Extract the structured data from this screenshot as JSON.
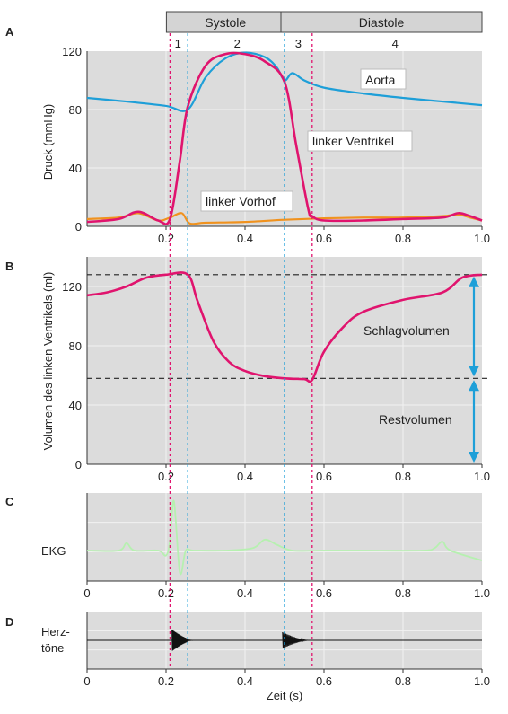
{
  "colors": {
    "panel_bg": "#dcdcdc",
    "grid": "#f2f2f2",
    "aorta": "#1e9fd8",
    "ventricle": "#e0146e",
    "atrium": "#f0921e",
    "ekg": "#b6f0b0",
    "heart_sound": "#111111",
    "divider_pink": "#e0146e",
    "divider_blue": "#1e9fd8",
    "annotation_blue": "#1e9fd8"
  },
  "phases": {
    "groups": [
      {
        "label": "Systole",
        "start": 0.21,
        "end": 0.5
      },
      {
        "label": "Diastole",
        "start": 0.5,
        "end": 1.0
      }
    ],
    "numbers": [
      {
        "label": "1",
        "center": 0.23
      },
      {
        "label": "2",
        "center": 0.38
      },
      {
        "label": "3",
        "center": 0.535
      },
      {
        "label": "4",
        "center": 0.78
      }
    ],
    "dividers": [
      {
        "t": 0.21,
        "color": "pink"
      },
      {
        "t": 0.255,
        "color": "blue"
      },
      {
        "t": 0.5,
        "color": "blue"
      },
      {
        "t": 0.57,
        "color": "pink"
      }
    ]
  },
  "chart_data": [
    {
      "panel": "A",
      "type": "line",
      "xlabel": "",
      "ylabel": "Druck (mmHg)",
      "xlim": [
        0,
        1.0
      ],
      "ylim": [
        0,
        120
      ],
      "xticks": [
        "0.2",
        "0.4",
        "0.6",
        "0.8",
        "1.0"
      ],
      "xtick_values": [
        0.2,
        0.4,
        0.6,
        0.8,
        1.0
      ],
      "yticks": [
        "0",
        "40",
        "80",
        "120"
      ],
      "ytick_values": [
        0,
        40,
        80,
        120
      ],
      "grid": true,
      "series": [
        {
          "name": "Aorta",
          "key": "aorta",
          "x": [
            0,
            0.1,
            0.2,
            0.255,
            0.3,
            0.35,
            0.4,
            0.45,
            0.48,
            0.5,
            0.52,
            0.55,
            0.6,
            0.7,
            0.8,
            0.9,
            1.0
          ],
          "y": [
            88,
            85.5,
            82.5,
            80,
            102,
            115,
            119,
            116,
            109,
            100,
            105,
            100,
            95,
            91,
            88,
            85.5,
            83
          ]
        },
        {
          "name": "linker Ventrikel",
          "key": "ventricle",
          "x": [
            0,
            0.08,
            0.13,
            0.18,
            0.21,
            0.235,
            0.255,
            0.3,
            0.35,
            0.4,
            0.45,
            0.5,
            0.53,
            0.56,
            0.57,
            0.6,
            0.7,
            0.8,
            0.9,
            0.94,
            0.97,
            1.0
          ],
          "y": [
            3,
            5,
            10,
            4,
            5,
            45,
            82,
            110,
            118,
            118,
            113,
            99,
            55,
            12,
            7,
            4,
            4,
            5,
            6,
            9,
            7,
            4
          ]
        },
        {
          "name": "linker Vorhof",
          "key": "atrium",
          "x": [
            0,
            0.08,
            0.13,
            0.18,
            0.21,
            0.24,
            0.26,
            0.3,
            0.4,
            0.5,
            0.6,
            0.7,
            0.8,
            0.9,
            0.94,
            0.97,
            1.0
          ],
          "y": [
            5,
            6,
            9,
            4,
            6,
            9,
            2,
            2.5,
            3,
            4.5,
            5.5,
            6,
            6,
            7,
            8,
            6,
            4
          ]
        }
      ]
    },
    {
      "panel": "B",
      "type": "line",
      "xlabel": "",
      "ylabel": "Volumen des linken Ventrikels (ml)",
      "xlim": [
        0,
        1.0
      ],
      "ylim": [
        0,
        140
      ],
      "xticks": [
        "0.2",
        "0.4",
        "0.6",
        "0.8",
        "1.0"
      ],
      "xtick_values": [
        0.2,
        0.4,
        0.6,
        0.8,
        1.0
      ],
      "yticks": [
        "0",
        "40",
        "80",
        "120"
      ],
      "ytick_values": [
        0,
        40,
        80,
        120
      ],
      "grid": true,
      "reference_lines": [
        128,
        58
      ],
      "series": [
        {
          "name": "",
          "key": "ventricle",
          "x": [
            0,
            0.05,
            0.1,
            0.15,
            0.2,
            0.255,
            0.28,
            0.32,
            0.36,
            0.4,
            0.45,
            0.5,
            0.55,
            0.57,
            0.6,
            0.65,
            0.7,
            0.8,
            0.9,
            0.95,
            1.0
          ],
          "y": [
            114,
            116,
            120,
            126,
            128,
            128,
            110,
            83,
            69,
            63,
            59.5,
            58,
            57.5,
            57,
            76,
            93,
            103,
            111,
            116,
            126,
            128
          ]
        }
      ],
      "annotations": [
        {
          "label": "Schlagvolumen",
          "from": 58,
          "to": 128
        },
        {
          "label": "Restvolumen",
          "from": 0,
          "to": 58
        }
      ]
    },
    {
      "panel": "C",
      "type": "line",
      "ylabel": "EKG",
      "xlim": [
        0,
        1.0
      ],
      "xticks": [
        "0",
        "0.2",
        "0.4",
        "0.6",
        "0.8",
        "1.0"
      ],
      "xtick_values": [
        0,
        0.2,
        0.4,
        0.6,
        0.8,
        1.0
      ],
      "grid": true,
      "series": [
        {
          "name": "",
          "key": "ekg",
          "x": [
            0,
            0.08,
            0.1,
            0.12,
            0.18,
            0.2,
            0.21,
            0.22,
            0.235,
            0.25,
            0.27,
            0.35,
            0.42,
            0.45,
            0.48,
            0.52,
            0.6,
            0.7,
            0.85,
            0.88,
            0.9,
            0.92,
            1.0
          ],
          "y": [
            0,
            0,
            0.15,
            0,
            0,
            -0.1,
            0.2,
            1.0,
            -0.45,
            0,
            0,
            0,
            0.05,
            0.22,
            0.12,
            0,
            0,
            0,
            0,
            0.05,
            0.18,
            0,
            -0.2
          ]
        }
      ]
    },
    {
      "panel": "D",
      "type": "line",
      "ylabel": "Herz-\ntöne",
      "xlabel": "Zeit (s)",
      "xlim": [
        0,
        1.0
      ],
      "xticks": [
        "0",
        "0.2",
        "0.4",
        "0.6",
        "0.8",
        "1.0"
      ],
      "xtick_values": [
        0,
        0.2,
        0.4,
        0.6,
        0.8,
        1.0
      ],
      "grid": true,
      "bursts": [
        {
          "start": 0.215,
          "end": 0.27,
          "amplitude": 1.0
        },
        {
          "start": 0.495,
          "end": 0.56,
          "amplitude": 0.75
        }
      ]
    }
  ],
  "panel_letters": [
    "A",
    "B",
    "C",
    "D"
  ],
  "series_labels": {
    "aorta": "Aorta",
    "ventricle": "linker Ventrikel",
    "atrium": "linker Vorhof"
  },
  "axis_titles": {
    "pressure": "Druck (mmHg)",
    "volume": "Volumen des linken Ventrikels (ml)",
    "ekg": "EKG",
    "heart_sounds_line1": "Herz-",
    "heart_sounds_line2": "töne",
    "time": "Zeit (s)"
  },
  "volume_annotations": {
    "stroke": "Schlagvolumen",
    "residual": "Restvolumen"
  }
}
